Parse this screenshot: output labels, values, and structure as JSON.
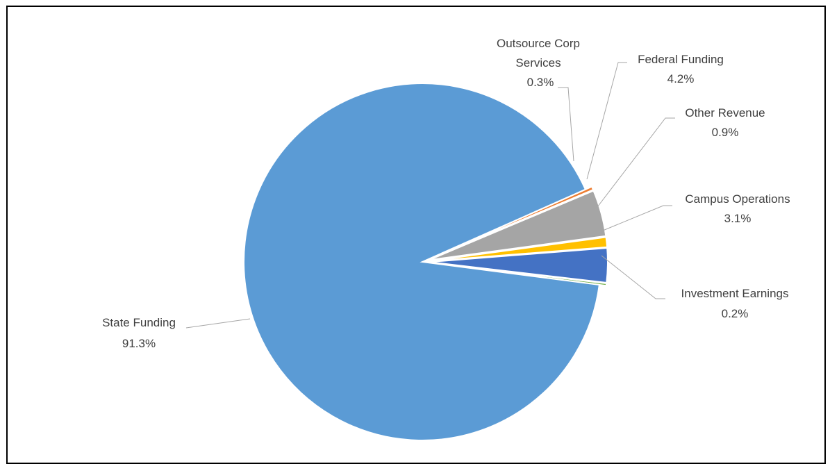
{
  "chart_data": {
    "type": "pie",
    "title": "",
    "series": [
      {
        "name": "State Funding",
        "value": 91.3,
        "label": "91.3%",
        "color": "#5b9bd5",
        "exploded": false
      },
      {
        "name": "Outsource Corp Services",
        "value": 0.3,
        "label": "0.3%",
        "color": "#ed7d31",
        "exploded": true
      },
      {
        "name": "Federal Funding",
        "value": 4.2,
        "label": "4.2%",
        "color": "#a5a5a5",
        "exploded": true
      },
      {
        "name": "Other Revenue",
        "value": 0.9,
        "label": "0.9%",
        "color": "#ffc000",
        "exploded": true
      },
      {
        "name": "Campus Operations",
        "value": 3.1,
        "label": "3.1%",
        "color": "#4472c4",
        "exploded": true
      },
      {
        "name": "Investment Earnings",
        "value": 0.2,
        "label": "0.2%",
        "color": "#70ad47",
        "exploded": true
      }
    ],
    "legend": "none",
    "data_labels": "category name and percentage with leader lines"
  }
}
